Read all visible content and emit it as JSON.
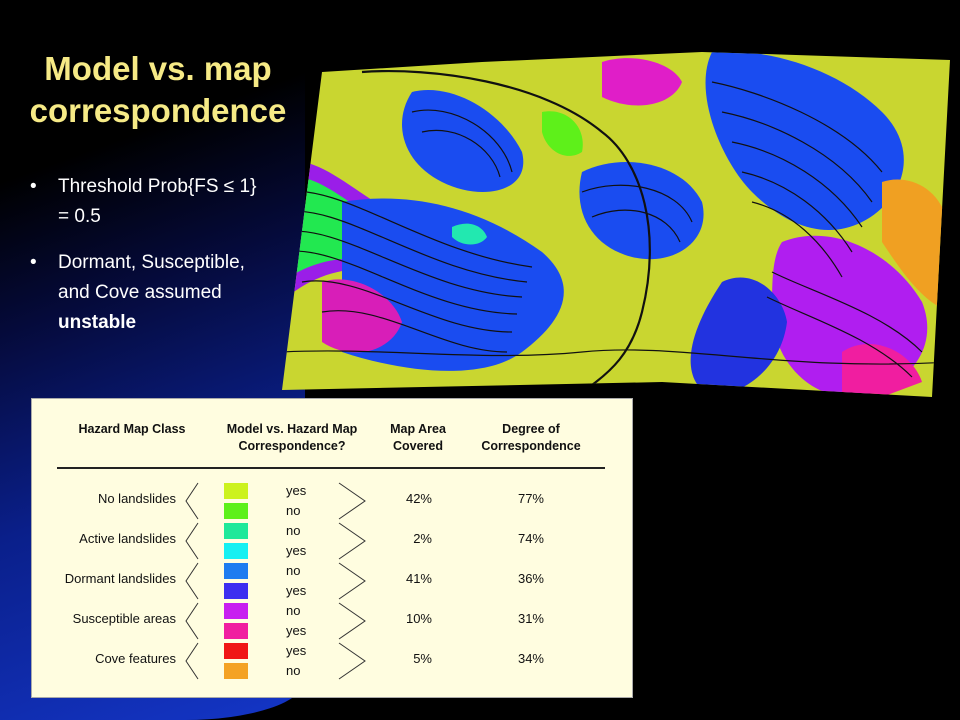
{
  "title": {
    "line1": "Model vs. map",
    "line2": "correspondence"
  },
  "bullets": [
    {
      "text": "Threshold Prob{FS ≤ 1} = 0.5"
    },
    {
      "text_prefix": "Dormant, Susceptible, and Cove assumed",
      "bold_word": "unstable"
    }
  ],
  "map_image": {
    "description": "3D terrain hazard map"
  },
  "legend": {
    "headers": {
      "hazard_class": "Hazard Map Class",
      "correspondence": "Model vs. Hazard Map Correspondence?",
      "area": "Map Area Covered",
      "degree": "Degree of Correspondence"
    },
    "rows": [
      {
        "class": "No landslides",
        "labels": [
          "yes",
          "no"
        ],
        "colors": [
          "#ccf21e",
          "#5ef01a"
        ],
        "area": "42%",
        "degree": "77%"
      },
      {
        "class": "Active landslides",
        "labels": [
          "no",
          "yes"
        ],
        "colors": [
          "#1fe89a",
          "#16f0f2"
        ],
        "area": "2%",
        "degree": "74%"
      },
      {
        "class": "Dormant landslides",
        "labels": [
          "no",
          "yes"
        ],
        "colors": [
          "#1e7cf0",
          "#3d2ef0"
        ],
        "area": "41%",
        "degree": "36%"
      },
      {
        "class": "Susceptible areas",
        "labels": [
          "no",
          "yes"
        ],
        "colors": [
          "#c81ef0",
          "#f01ea0"
        ],
        "area": "10%",
        "degree": "31%"
      },
      {
        "class": "Cove features",
        "labels": [
          "yes",
          "no"
        ],
        "colors": [
          "#f01616",
          "#f4a224"
        ],
        "area": "5%",
        "degree": "34%"
      }
    ]
  }
}
